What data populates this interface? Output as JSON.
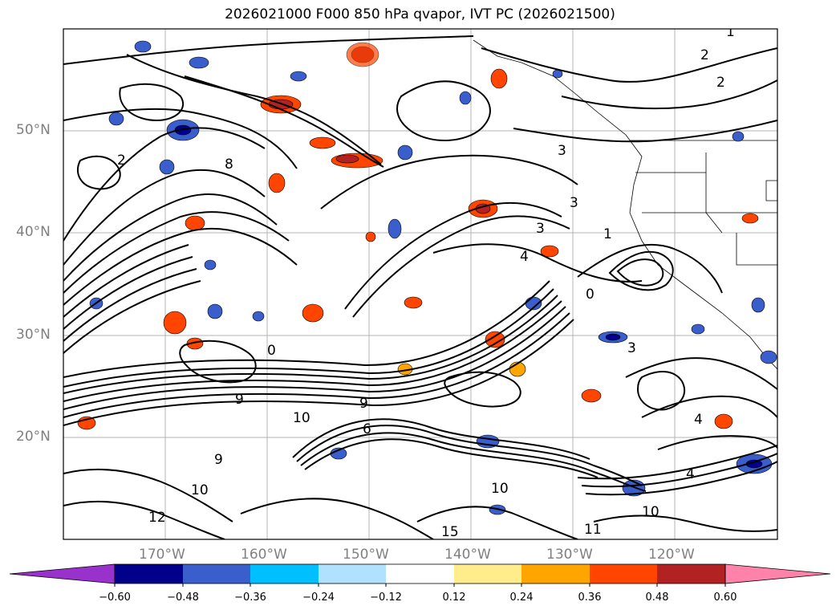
{
  "title": "2026021000 F000 850 hPa qvapor, IVT PC (2026021500)",
  "latitude_labels": [
    "50°N",
    "40°N",
    "30°N",
    "20°N"
  ],
  "longitude_labels": [
    "170°W",
    "160°W",
    "150°W",
    "140°W",
    "130°W",
    "120°W"
  ],
  "colorbar": {
    "ticks": [
      "−0.60",
      "−0.48",
      "−0.36",
      "−0.24",
      "−0.12",
      "0.12",
      "0.24",
      "0.36",
      "0.48",
      "0.60"
    ],
    "colors": [
      "#9932CC",
      "#00008B",
      "#3A5FCD",
      "#00BFFF",
      "#B0E2FF",
      "#FFFFFF",
      "#FFEC8B",
      "#FFA500",
      "#FF4500",
      "#B22222",
      "#FF82AB"
    ],
    "extend": "both"
  },
  "contour_labels": [
    "1",
    "2",
    "2",
    "3",
    "3",
    "3",
    "3",
    "4",
    "4",
    "4",
    "9",
    "9",
    "9",
    "10",
    "10",
    "10",
    "10",
    "0",
    "0",
    "1",
    "2",
    "6",
    "8",
    "11",
    "12",
    "15"
  ]
}
